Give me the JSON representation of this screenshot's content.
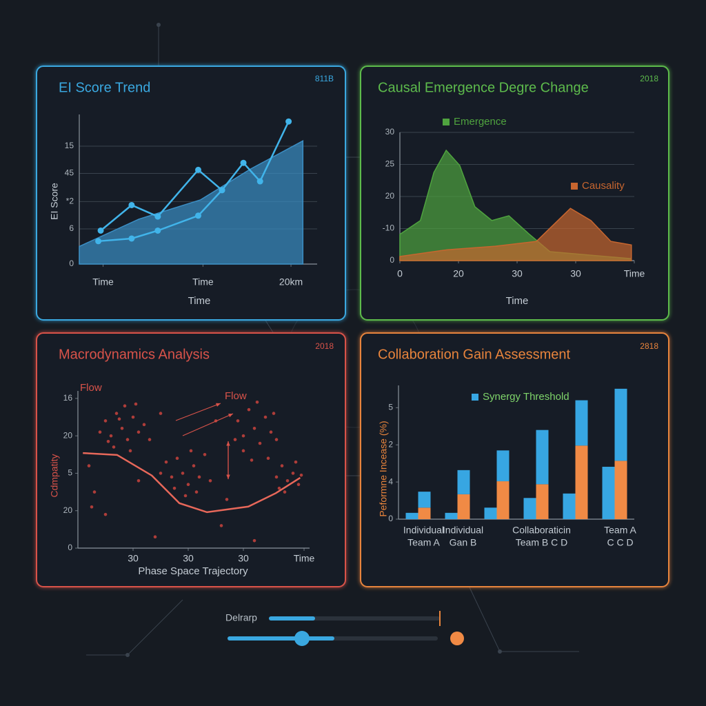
{
  "chart_data": [
    {
      "type": "line",
      "title": "EI Score Trend",
      "corner_label": "811B",
      "color": "#3aa8e0",
      "ylabel": "EI Score",
      "xlabel": "Time",
      "grid": true,
      "xlim": [
        0,
        10
      ],
      "xticks": [
        {
          "value": 1,
          "label": "Time"
        },
        {
          "value": 5.2,
          "label": "Time"
        },
        {
          "value": 8.9,
          "label": "20km"
        }
      ],
      "ylim": [
        0,
        17
      ],
      "yticks": [
        0,
        {
          "value": 4,
          "label": "6"
        },
        {
          "value": 7.1,
          "label": "*2"
        },
        {
          "value": 10.3,
          "label": "45"
        },
        {
          "value": 13.4,
          "label": "15"
        }
      ],
      "series": [
        {
          "type": "area",
          "color": "#3b8ec4",
          "x": [
            0,
            2.5,
            5.1,
            7.2,
            9.4
          ],
          "values": [
            2.0,
            5.1,
            7.3,
            10.8,
            14.0
          ]
        },
        {
          "type": "line",
          "markers": true,
          "color": "#41b4ea",
          "x": [
            0.9,
            2.2,
            3.3,
            5.0,
            6.0,
            6.9,
            7.6,
            8.8
          ],
          "values": [
            3.8,
            6.7,
            5.4,
            10.7,
            8.4,
            11.5,
            9.4,
            16.2
          ]
        },
        {
          "type": "line",
          "markers": true,
          "color": "#41b4ea",
          "x": [
            0.8,
            2.2,
            3.3,
            5.0,
            6.0
          ],
          "values": [
            2.6,
            2.9,
            3.8,
            5.5,
            8.4
          ]
        }
      ]
    },
    {
      "type": "area",
      "title": "Causal Emergence Degre Change",
      "corner_label": "2018",
      "color": "#5dbb4c",
      "xlabel": "Time",
      "grid": true,
      "xlim": [
        0,
        40
      ],
      "xticks": [
        0,
        {
          "value": 10,
          "label": "20"
        },
        {
          "value": 20,
          "label": "30"
        },
        30,
        {
          "value": 40,
          "label": "Time"
        }
      ],
      "ylim": [
        0,
        40
      ],
      "yticks": [
        0,
        {
          "value": 10,
          "label": "-10"
        },
        20,
        {
          "value": 30,
          "label": "25"
        },
        {
          "value": 40,
          "label": "30"
        }
      ],
      "series": [
        {
          "type": "area",
          "name": "Emergence",
          "color": "#4fa33f",
          "x": [
            0,
            3.5,
            5.8,
            7.9,
            10.2,
            12.8,
            15.7,
            18.6,
            22.1,
            25.6,
            39.5
          ],
          "values": [
            8.2,
            12.5,
            27.5,
            34.4,
            29.7,
            16.8,
            12.5,
            14.0,
            8.2,
            2.8,
            0.6
          ]
        },
        {
          "type": "area",
          "name": "Causality",
          "color": "#c8662f",
          "x": [
            0,
            8.1,
            16.3,
            23.3,
            29.1,
            32.6,
            36.0,
            39.5
          ],
          "values": [
            1.3,
            3.4,
            4.5,
            6.0,
            16.3,
            12.5,
            6.0,
            4.9
          ]
        }
      ]
    },
    {
      "type": "scatter",
      "title": "Macrodynamics Analysis",
      "corner_label": "2018",
      "color": "#d9534a",
      "ylabel": "Cdmpatity",
      "xlabel": "Phase Space Trajectory",
      "annotations": [
        "Flow",
        "Flow"
      ],
      "grid": false,
      "xlim": [
        0,
        4.2
      ],
      "xticks": [
        {
          "value": 1,
          "label": "30"
        },
        {
          "value": 2,
          "label": "30"
        },
        {
          "value": 3,
          "label": "30"
        },
        {
          "value": 4.1,
          "label": "Time"
        }
      ],
      "ylim": [
        0,
        4.2
      ],
      "yticks": [
        0,
        {
          "value": 1,
          "label": "20"
        },
        {
          "value": 2,
          "label": "5"
        },
        {
          "value": 3,
          "label": "20"
        },
        {
          "value": 4,
          "label": "16"
        }
      ],
      "series": [
        {
          "type": "scatter",
          "color": "#c9433d",
          "x": [
            0.5,
            0.6,
            0.7,
            0.8,
            0.9,
            1.0,
            1.1,
            0.65,
            0.85,
            1.2,
            0.4,
            0.95,
            1.3,
            0.75,
            1.05,
            0.55,
            1.6,
            1.7,
            1.8,
            1.9,
            2.0,
            2.1,
            2.2,
            2.3,
            1.75,
            2.05,
            2.4,
            1.95,
            2.15,
            1.5,
            2.9,
            3.0,
            3.1,
            3.2,
            3.3,
            3.4,
            3.5,
            3.0,
            3.25,
            3.6,
            2.85,
            3.45,
            3.15,
            3.55,
            3.6,
            3.7,
            3.8,
            3.9,
            4.0,
            3.75,
            3.95,
            3.65,
            4.05,
            0.3,
            0.5,
            1.4,
            2.6,
            3.2,
            2.7,
            1.1,
            0.2,
            2.5,
            1.5,
            0.25
          ],
          "values": [
            3.4,
            3.0,
            3.6,
            3.2,
            2.9,
            3.5,
            3.1,
            2.7,
            3.8,
            3.3,
            3.1,
            2.6,
            2.9,
            3.45,
            3.85,
            2.85,
            2.3,
            1.9,
            2.4,
            2.0,
            1.7,
            2.2,
            1.9,
            2.5,
            1.6,
            2.6,
            1.8,
            1.4,
            1.5,
            2.0,
            3.4,
            3.0,
            3.7,
            3.2,
            2.8,
            3.5,
            3.1,
            2.6,
            3.9,
            2.9,
            2.9,
            2.4,
            2.35,
            3.6,
            1.9,
            2.2,
            1.8,
            2.0,
            1.7,
            1.5,
            2.3,
            1.6,
            1.95,
            1.5,
            0.9,
            0.3,
            0.6,
            0.2,
            1.3,
            1.8,
            2.2,
            3.4,
            3.6,
            1.1
          ]
        },
        {
          "type": "line",
          "color": "#e8685a",
          "x": [
            0.09,
            0.71,
            1.34,
            1.84,
            2.34,
            3.09,
            3.59,
            4.03
          ],
          "values": [
            2.54,
            2.49,
            1.94,
            1.2,
            0.96,
            1.11,
            1.47,
            1.88
          ]
        }
      ]
    },
    {
      "type": "bar",
      "title": "Collaboration Gain Assessment",
      "corner_label": "2818",
      "color": "#e8843c",
      "ylabel": "Peformne Incease (%)",
      "grid": false,
      "categories": [
        [
          "Individual",
          "Team A"
        ],
        [
          "Individual",
          "Gan B"
        ],
        null,
        [
          "Collaboraticin",
          "Team B C D"
        ],
        null,
        [
          "Team A",
          "C C D"
        ]
      ],
      "ylim": [
        0,
        3.6
      ],
      "yticks": [
        0,
        {
          "value": 1,
          "label": "4"
        },
        {
          "value": 2,
          "label": "2"
        },
        {
          "value": 3,
          "label": "5"
        }
      ],
      "threshold": 1.15,
      "threshold_color": "#6fe05a",
      "series": [
        {
          "name": "Synergy Threshold",
          "color": "#37a6e2",
          "values": [
            0.17,
            0.17,
            0.31,
            0.57,
            0.69,
            1.41
          ]
        },
        {
          "color": "#f08a45",
          "stack": false,
          "values": [
            0.31,
            0.67,
            1.02,
            0.94,
            1.98,
            1.57
          ]
        },
        {
          "color": "#37a6e2",
          "stack": true,
          "values": [
            0.43,
            0.65,
            0.83,
            1.46,
            1.22,
            1.94
          ]
        }
      ]
    }
  ],
  "controls": {
    "label": "Delrarp"
  }
}
